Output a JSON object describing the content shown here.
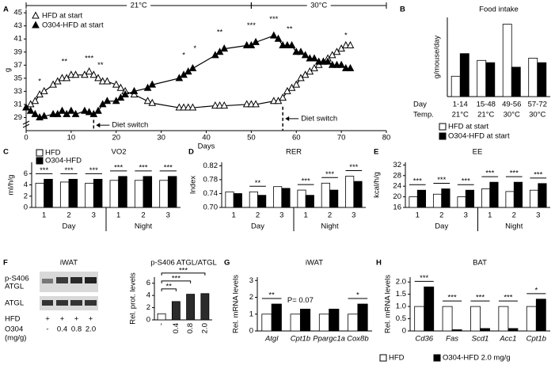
{
  "chart_data": [
    {
      "panel": "A",
      "type": "line",
      "xlabel": "Days",
      "ylabel": "g",
      "x": [
        0,
        1,
        2,
        3,
        4,
        6,
        7,
        8,
        9,
        10,
        11,
        13,
        14,
        15,
        16,
        17,
        18,
        20,
        21,
        22,
        24,
        27,
        28,
        34,
        35,
        36,
        37,
        42,
        43,
        44,
        49,
        50,
        51,
        55,
        56,
        57,
        58,
        59,
        60,
        61,
        62,
        63,
        64,
        65,
        66,
        67,
        68,
        69,
        70,
        71,
        72
      ],
      "series": [
        {
          "name": "HFD at start",
          "marker": "open",
          "color": "#000000",
          "values": [
            30.5,
            31,
            31.5,
            32.5,
            33,
            34,
            34.5,
            35,
            35,
            35.5,
            35.5,
            35.5,
            36,
            35.5,
            35,
            34.5,
            34.5,
            34,
            33.5,
            33,
            32.5,
            31.5,
            31.2,
            30.5,
            30.5,
            30.5,
            30.5,
            30.8,
            30.8,
            30.8,
            31,
            31,
            31,
            31.5,
            31.5,
            32,
            33,
            33.5,
            34,
            35,
            35.5,
            36,
            36.5,
            37,
            37.5,
            38,
            38.5,
            39,
            39.5,
            40,
            40
          ]
        },
        {
          "name": "O304-HFD at start",
          "marker": "filled",
          "color": "#000000",
          "values": [
            30.5,
            30,
            29.5,
            29,
            29.2,
            29.5,
            29.5,
            30,
            29.5,
            30,
            29.5,
            30,
            29.8,
            29.5,
            30,
            31,
            31.5,
            31.5,
            32,
            32.5,
            33,
            33.5,
            34,
            35,
            35.5,
            36,
            36.5,
            38.5,
            39,
            39.5,
            40,
            40,
            40.5,
            41.5,
            41,
            40,
            40,
            40,
            39,
            39,
            38.5,
            38,
            38,
            37.5,
            37.5,
            37.5,
            37,
            37,
            37,
            36.5,
            36.5
          ]
        }
      ],
      "xlim": [
        0,
        80
      ],
      "xticks": [
        0,
        10,
        20,
        30,
        40,
        50,
        60,
        70,
        80
      ],
      "ylim": [
        27,
        45.5
      ],
      "yticks": [
        29,
        31,
        33,
        35,
        37,
        39,
        41,
        43,
        45
      ],
      "legend": "upper left",
      "temp_bands": [
        {
          "label": "21°C",
          "from": 0,
          "to": 50
        },
        {
          "label": "30°C",
          "from": 50,
          "to": 80
        }
      ],
      "diet_switch": [
        {
          "day": 15,
          "label": "Diet switch"
        },
        {
          "day": 57,
          "label": "Diet switch"
        }
      ],
      "annotations": [
        {
          "text": "*",
          "x": 3,
          "y": 34.5
        },
        {
          "text": "**",
          "x": 8.5,
          "y": 37.5
        },
        {
          "text": "***",
          "x": 14,
          "y": 38
        },
        {
          "text": "**",
          "x": 16.5,
          "y": 37
        },
        {
          "text": "*",
          "x": 35,
          "y": 38.5
        },
        {
          "text": "*",
          "x": 37.5,
          "y": 39.5
        },
        {
          "text": "**",
          "x": 43,
          "y": 42
        },
        {
          "text": "***",
          "x": 50,
          "y": 43
        },
        {
          "text": "***",
          "x": 55,
          "y": 44
        },
        {
          "text": "**",
          "x": 58.5,
          "y": 42.5
        },
        {
          "text": "*",
          "x": 71,
          "y": 41.5
        }
      ]
    },
    {
      "panel": "B",
      "type": "bar",
      "title": "Food intake",
      "ylabel": "g/mouse/day",
      "categories": [
        "1-14",
        "15-48",
        "49-56",
        "57-72"
      ],
      "category_label": "Day",
      "temps": [
        "21°C",
        "21°C",
        "30°C",
        "30°C"
      ],
      "temps_label": "Temp.",
      "series": [
        {
          "name": "HFD at start",
          "color": "#ffffff",
          "values": [
            2.9,
            3.6,
            5.2,
            3.7
          ]
        },
        {
          "name": "O304-HFD at start",
          "color": "#000000",
          "values": [
            3.9,
            3.5,
            3.3,
            3.5
          ]
        }
      ],
      "ylim": [
        2,
        5.5
      ],
      "yticks": [],
      "legend": "below"
    },
    {
      "panel": "C",
      "type": "bar",
      "title": "VO2",
      "ylabel": "ml/h/g",
      "categories": [
        "1",
        "2",
        "3",
        "1",
        "2",
        "3"
      ],
      "group_labels": [
        "Day",
        "Night"
      ],
      "series": [
        {
          "name": "HFD",
          "color": "#ffffff",
          "values": [
            4.3,
            4.5,
            4.3,
            4.8,
            4.8,
            4.8
          ]
        },
        {
          "name": "O304-HFD",
          "color": "#000000",
          "values": [
            5,
            5,
            5,
            5.5,
            5.5,
            5.5
          ]
        }
      ],
      "stars": [
        "***",
        "***",
        "***",
        "***",
        "***",
        "***"
      ],
      "ylim": [
        0,
        8
      ],
      "yticks": [
        0,
        2,
        4,
        6
      ],
      "legend": "upper left"
    },
    {
      "panel": "D",
      "type": "bar",
      "title": "RER",
      "ylabel": "Index",
      "categories": [
        "1",
        "2",
        "3",
        "1",
        "2",
        "3"
      ],
      "group_labels": [
        "Day",
        "Night"
      ],
      "series": [
        {
          "color": "#ffffff",
          "values": [
            0.745,
            0.745,
            0.76,
            0.75,
            0.77,
            0.79
          ]
        },
        {
          "color": "#000000",
          "values": [
            0.74,
            0.735,
            0.755,
            0.735,
            0.75,
            0.775
          ]
        }
      ],
      "stars": [
        null,
        "**",
        null,
        "***",
        "***",
        "***"
      ],
      "ylim": [
        0.7,
        0.83
      ],
      "yticks": [
        {
          "value": 0.7,
          "label": "0.70"
        },
        0.74,
        0.78,
        0.82
      ]
    },
    {
      "panel": "E",
      "type": "bar",
      "title": "EE",
      "ylabel": "kcal/h/g",
      "categories": [
        "1",
        "2",
        "3",
        "1",
        "2",
        "3"
      ],
      "group_labels": [
        "Day",
        "Night"
      ],
      "series": [
        {
          "color": "#ffffff",
          "values": [
            20,
            21,
            20,
            23,
            22,
            22.5
          ]
        },
        {
          "color": "#000000",
          "values": [
            22.5,
            23,
            22.5,
            25.5,
            25.5,
            25
          ]
        }
      ],
      "stars": [
        "***",
        "***",
        "***",
        "***",
        "***",
        "***"
      ],
      "ylim": [
        16,
        33
      ],
      "yticks": [
        16,
        20,
        24,
        28,
        32
      ]
    },
    {
      "panel": "F",
      "type": "bar",
      "title": "p-S406 ATGL/ATGL",
      "ylabel": "Rel. prot. levels",
      "blot": {
        "title": "iWAT",
        "phospho_label": [
          "p-S406",
          "ATGL"
        ],
        "total_label": "ATGL",
        "hfd_label": "HFD",
        "hfd_marks": [
          "+",
          "+",
          "+",
          "+"
        ],
        "dose_label": [
          "O304",
          "(mg/g)"
        ]
      },
      "categories": [
        "-",
        "0.4",
        "0.8",
        "2.0"
      ],
      "series": [
        {
          "colors": [
            "#ffffff",
            "#2b2b2b",
            "#2b2b2b",
            "#2b2b2b"
          ],
          "values": [
            1,
            3,
            4.2,
            4.3
          ]
        }
      ],
      "stars": [
        null,
        "**",
        "***",
        "***"
      ],
      "ylim": [
        0,
        7
      ],
      "yticks": [
        0,
        2,
        4,
        6
      ]
    },
    {
      "panel": "G",
      "type": "bar",
      "title": "iWAT",
      "ylabel": "Rel. mRNA levels",
      "categories": [
        "Atgl",
        "Cpt1b",
        "Ppargc1a",
        "Cox8b"
      ],
      "series": [
        {
          "color": "#ffffff",
          "values": [
            1,
            1,
            1,
            1
          ]
        },
        {
          "color": "#000000",
          "values": [
            1.6,
            1.3,
            1.3,
            1.6
          ]
        }
      ],
      "stars": [
        "**",
        "P= 0.07",
        null,
        "*"
      ],
      "ylim": [
        0,
        3.2
      ],
      "yticks": [
        0,
        1,
        2,
        3
      ]
    },
    {
      "panel": "H",
      "type": "bar",
      "title": "BAT",
      "ylabel": "Rel. mRNA levels",
      "categories": [
        "Cd36",
        "Fas",
        "Scd1",
        "Acc1",
        "Cpt1b"
      ],
      "series": [
        {
          "name": "HFD",
          "color": "#ffffff",
          "values": [
            1,
            1,
            1,
            1,
            1
          ]
        },
        {
          "name": "O304-HFD 2.0 mg/g",
          "color": "#000000",
          "values": [
            1.8,
            0.05,
            0.1,
            0.1,
            1.3
          ]
        }
      ],
      "stars": [
        "***",
        "***",
        "***",
        "***",
        "*"
      ],
      "ylim": [
        0,
        2.2
      ],
      "yticks": [
        0,
        0.5,
        {
          "value": 1,
          "label": "1.0"
        },
        1.5,
        {
          "value": 2,
          "label": "2.0"
        }
      ],
      "legend": "bottom"
    }
  ]
}
